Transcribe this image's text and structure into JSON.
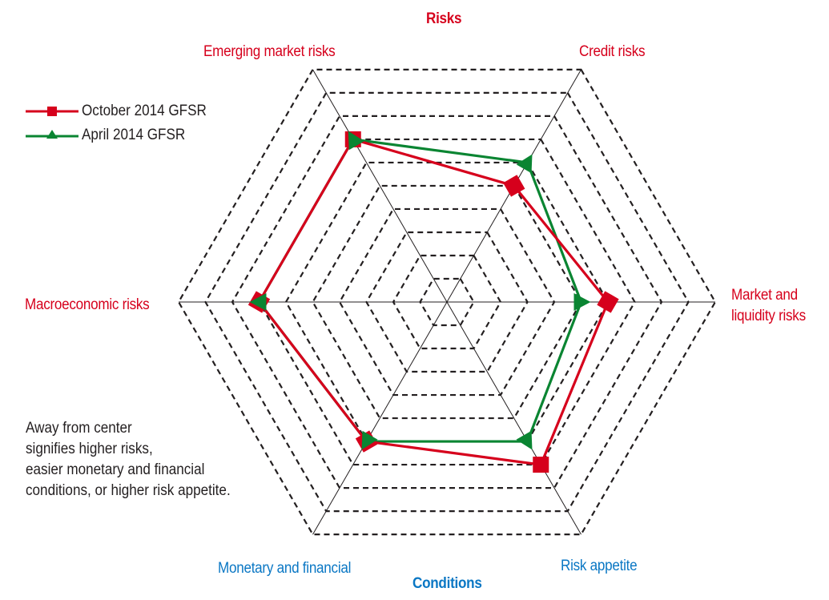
{
  "chart_data": {
    "type": "radar",
    "title": "Risks",
    "bottom_title": "Conditions",
    "axes": [
      "Credit risks",
      "Market and liquidity risks",
      "Risk appetite",
      "Monetary and financial",
      "Macroeconomic risks",
      "Emerging market risks"
    ],
    "axis_groups": {
      "risks": [
        "Emerging market risks",
        "Credit risks",
        "Market and liquidity risks",
        "Macroeconomic risks"
      ],
      "conditions": [
        "Monetary and financial",
        "Risk appetite"
      ]
    },
    "range": [
      0,
      10
    ],
    "rings": 10,
    "series": [
      {
        "name": "October 2014 GFSR",
        "color": "#d6001c",
        "marker": "square",
        "values": [
          5,
          6,
          7,
          6,
          7,
          7
        ]
      },
      {
        "name": "April 2014 GFSR",
        "color": "#0a8532",
        "marker": "triangle",
        "values": [
          6,
          5,
          6,
          6,
          7,
          7
        ]
      }
    ],
    "legend_position": "top-left",
    "annotation": "Away from center signifies higher risks, easier monetary and financial conditions, or higher risk appetite."
  },
  "labels": {
    "risks_title": "Risks",
    "conditions_title": "Conditions",
    "emerging": "Emerging market risks",
    "credit": "Credit risks",
    "market_line1": "Market and",
    "market_line2": "liquidity risks",
    "macro": "Macroeconomic risks",
    "monetary": "Monetary and financial",
    "appetite": "Risk appetite"
  },
  "legend": [
    {
      "label": "October 2014 GFSR"
    },
    {
      "label": "April 2014 GFSR"
    }
  ],
  "note_lines": [
    "Away from center",
    "signifies higher risks,",
    "easier monetary and financial",
    "conditions, or higher risk appetite."
  ]
}
